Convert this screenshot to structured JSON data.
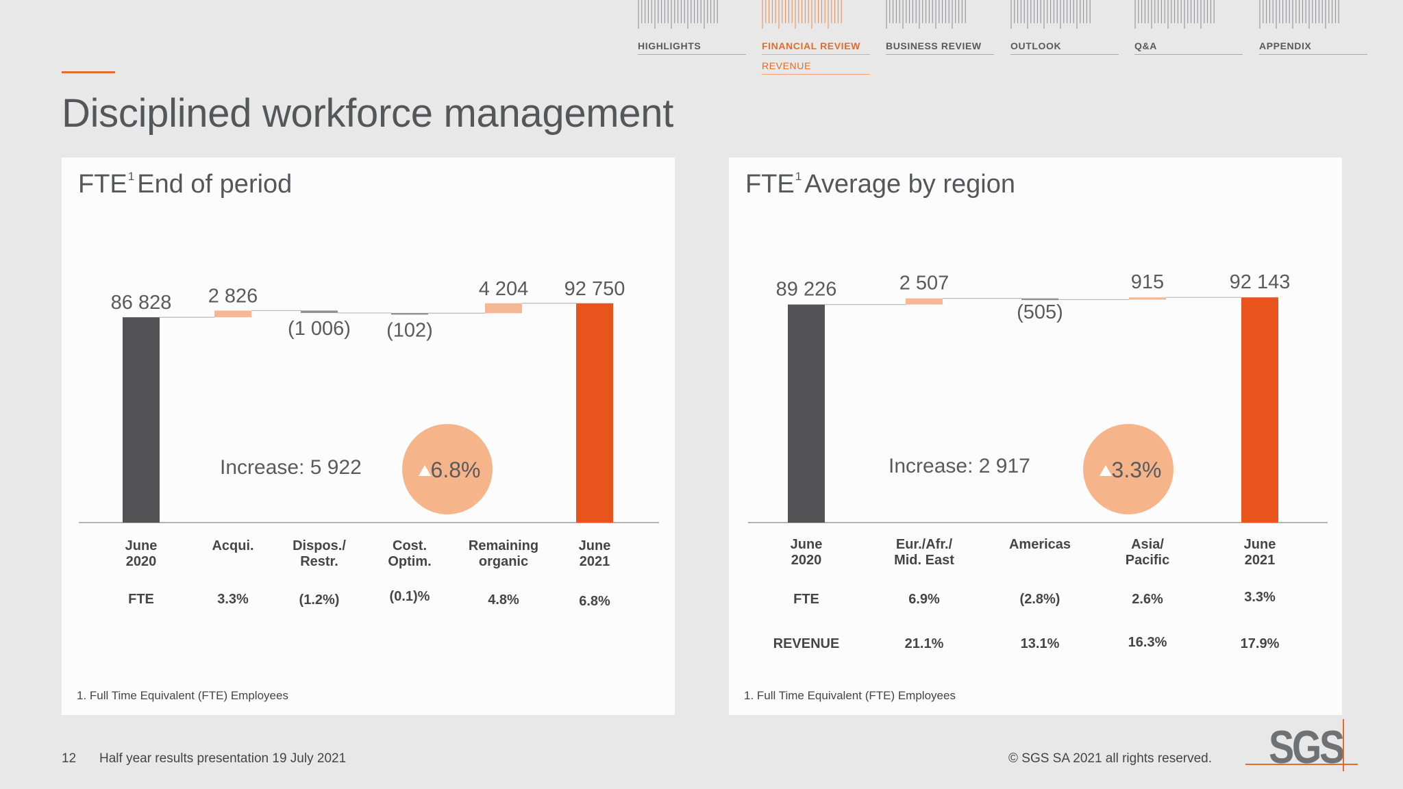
{
  "nav": {
    "items": [
      {
        "label": "HIGHLIGHTS",
        "active": false
      },
      {
        "label": "FINANCIAL REVIEW",
        "active": true,
        "sub": "REVENUE"
      },
      {
        "label": "BUSINESS REVIEW",
        "active": false
      },
      {
        "label": "OUTLOOK",
        "active": false
      },
      {
        "label": "Q&A",
        "active": false
      },
      {
        "label": "APPENDIX",
        "active": false
      }
    ]
  },
  "page_title": "Disciplined workforce management",
  "colors": {
    "accent": "#e36c2a",
    "orange_bar": "#e8541b",
    "dark_bar": "#535356",
    "increase_step": "#f5b896",
    "decrease_step": "#8f8f91",
    "circle": "#f5b48a"
  },
  "chart_data": [
    {
      "type": "bar",
      "subtype": "waterfall",
      "title": "FTE",
      "title_suffix": "End of period",
      "footnote_marker": "1",
      "categories": [
        "June\n2020",
        "Acqui.",
        "Dispos./\nRestr.",
        "Cost.\nOptim.",
        "Remaining\norganic",
        "June\n2021"
      ],
      "values": [
        86828,
        2826,
        -1006,
        -102,
        4204,
        92750
      ],
      "value_labels": [
        "86 828",
        "2 826",
        "(1 006)",
        "(102)",
        "4 204",
        "92 750"
      ],
      "bar_kinds": [
        "total",
        "delta",
        "delta",
        "delta",
        "delta",
        "total"
      ],
      "ylim": [
        0,
        95000
      ],
      "rows": [
        {
          "label": "FTE",
          "values": [
            "3.3%",
            "(1.2%)",
            "(0.1)%",
            "4.8%",
            "6.8%"
          ]
        }
      ],
      "increase_text": "Increase: 5 922",
      "increase_pct": "6.8%",
      "footnote": "1. Full Time Equivalent (FTE) Employees"
    },
    {
      "type": "bar",
      "subtype": "waterfall",
      "title": "FTE",
      "title_suffix": "Average by region",
      "footnote_marker": "1",
      "categories": [
        "June\n2020",
        "Eur./Afr./\nMid. East",
        "Americas",
        "Asia/\nPacific",
        "June\n2021"
      ],
      "values": [
        89226,
        2507,
        -505,
        915,
        92143
      ],
      "value_labels": [
        "89 226",
        "2 507",
        "(505)",
        "915",
        "92 143"
      ],
      "bar_kinds": [
        "total",
        "delta",
        "delta",
        "delta",
        "total"
      ],
      "ylim": [
        0,
        95000
      ],
      "rows": [
        {
          "label": "FTE",
          "values": [
            "6.9%",
            "(2.8%)",
            "2.6%",
            "3.3%"
          ]
        },
        {
          "label": "REVENUE",
          "values": [
            "21.1%",
            "13.1%",
            "16.3%",
            "17.9%"
          ]
        }
      ],
      "increase_text": "Increase: 2 917",
      "increase_pct": "3.3%",
      "footnote": "1. Full Time Equivalent (FTE) Employees"
    }
  ],
  "footer": {
    "page_number": "12",
    "text": "Half year results presentation 19 July 2021",
    "copyright": "© SGS SA 2021 all rights reserved.",
    "logo": "SGS"
  }
}
